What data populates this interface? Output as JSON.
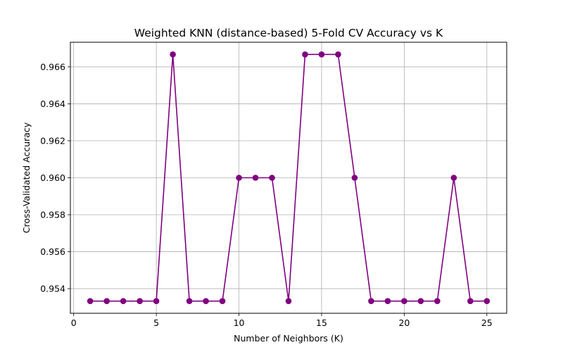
{
  "chart_data": {
    "type": "line",
    "title": "Weighted KNN (distance-based) 5-Fold CV Accuracy vs K",
    "xlabel": "Number of Neighbors (K)",
    "ylabel": "Cross-Validated Accuracy",
    "xlim": [
      -0.2,
      26.2
    ],
    "ylim": [
      0.95267,
      0.96733
    ],
    "xticks": [
      0,
      5,
      10,
      15,
      20,
      25
    ],
    "yticks": [
      0.954,
      0.956,
      0.958,
      0.96,
      0.962,
      0.964,
      0.966
    ],
    "grid": true,
    "color": "#800080",
    "marker": "circle",
    "series": [
      {
        "x": [
          1,
          2,
          3,
          4,
          5,
          6,
          7,
          8,
          9,
          10,
          11,
          12,
          13,
          14,
          15,
          16,
          17,
          18,
          19,
          20,
          21,
          22,
          23,
          24,
          25
        ],
        "values": [
          0.95333,
          0.95333,
          0.95333,
          0.95333,
          0.95333,
          0.96667,
          0.95333,
          0.95333,
          0.95333,
          0.96,
          0.96,
          0.96,
          0.95333,
          0.96667,
          0.96667,
          0.96667,
          0.96,
          0.95333,
          0.95333,
          0.95333,
          0.95333,
          0.95333,
          0.96,
          0.95333,
          0.95333
        ]
      }
    ]
  }
}
